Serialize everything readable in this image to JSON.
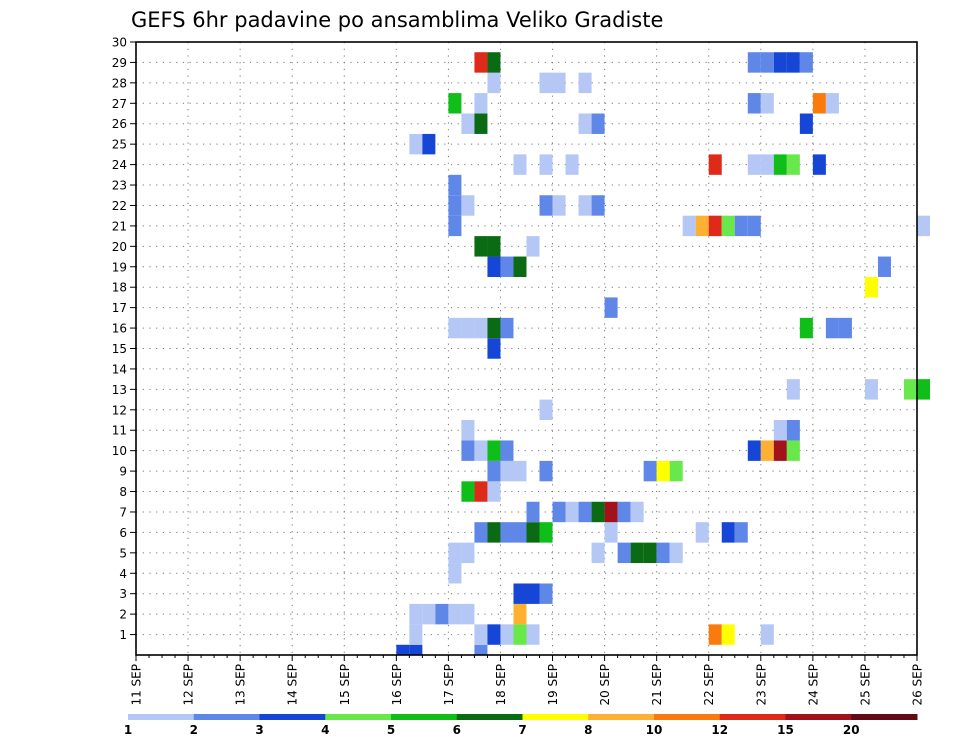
{
  "chart_data": {
    "type": "heatmap",
    "title": "GEFS 6hr padavine po ansamblima Veliko Gradiste",
    "xlabel": "",
    "ylabel": "",
    "x_ticks": [
      "11 SEP",
      "12 SEP",
      "13 SEP",
      "14 SEP",
      "15 SEP",
      "16 SEP",
      "17 SEP",
      "18 SEP",
      "19 SEP",
      "20 SEP",
      "21 SEP",
      "22 SEP",
      "23 SEP",
      "24 SEP",
      "25 SEP",
      "26 SEP"
    ],
    "x_unit_note": "x values are forecast time in days from 11 SEP 00Z; each cell spans 0.25 day (6 hours)",
    "xlim": [
      0,
      15
    ],
    "y_ticks": [
      1,
      2,
      3,
      4,
      5,
      6,
      7,
      8,
      9,
      10,
      11,
      12,
      13,
      14,
      15,
      16,
      17,
      18,
      19,
      20,
      21,
      22,
      23,
      24,
      25,
      26,
      27,
      28,
      29,
      30
    ],
    "ylim": [
      0,
      30
    ],
    "grid": true,
    "colorbar": {
      "labels": [
        "1",
        "2",
        "3",
        "4",
        "5",
        "6",
        "7",
        "8",
        "10",
        "12",
        "15",
        "20"
      ],
      "colors": [
        "#b4c7f5",
        "#5f87e8",
        "#1546d6",
        "#69e84c",
        "#10be1a",
        "#0b6a14",
        "#ffff00",
        "#fdb031",
        "#fa7a0e",
        "#df2a1a",
        "#a3111a",
        "#640a14"
      ]
    },
    "cells": [
      [
        5.0,
        0,
        "#1546d6"
      ],
      [
        5.25,
        0,
        "#1546d6"
      ],
      [
        6.5,
        0,
        "#5f87e8"
      ],
      [
        5.25,
        1,
        "#b4c7f5"
      ],
      [
        6.5,
        1,
        "#b4c7f5"
      ],
      [
        6.75,
        1,
        "#1546d6"
      ],
      [
        7.0,
        1,
        "#b4c7f5"
      ],
      [
        7.25,
        1,
        "#69e84c"
      ],
      [
        7.5,
        1,
        "#b4c7f5"
      ],
      [
        11.0,
        1,
        "#fa7a0e"
      ],
      [
        11.25,
        1,
        "#ffff00"
      ],
      [
        12.0,
        1,
        "#b4c7f5"
      ],
      [
        5.25,
        2,
        "#b4c7f5"
      ],
      [
        5.5,
        2,
        "#b4c7f5"
      ],
      [
        5.75,
        2,
        "#5f87e8"
      ],
      [
        6.0,
        2,
        "#b4c7f5"
      ],
      [
        6.25,
        2,
        "#b4c7f5"
      ],
      [
        7.25,
        2,
        "#fdb031"
      ],
      [
        7.25,
        3,
        "#1546d6"
      ],
      [
        7.5,
        3,
        "#1546d6"
      ],
      [
        7.75,
        3,
        "#5f87e8"
      ],
      [
        6.0,
        4,
        "#b4c7f5"
      ],
      [
        6.0,
        5,
        "#b4c7f5"
      ],
      [
        6.25,
        5,
        "#b4c7f5"
      ],
      [
        8.75,
        5,
        "#b4c7f5"
      ],
      [
        9.25,
        5,
        "#5f87e8"
      ],
      [
        9.5,
        5,
        "#0b6a14"
      ],
      [
        9.75,
        5,
        "#0b6a14"
      ],
      [
        10.0,
        5,
        "#5f87e8"
      ],
      [
        10.25,
        5,
        "#b4c7f5"
      ],
      [
        6.5,
        6,
        "#5f87e8"
      ],
      [
        6.75,
        6,
        "#0b6a14"
      ],
      [
        7.0,
        6,
        "#5f87e8"
      ],
      [
        7.25,
        6,
        "#5f87e8"
      ],
      [
        7.5,
        6,
        "#0b6a14"
      ],
      [
        7.75,
        6,
        "#10be1a"
      ],
      [
        9.0,
        6,
        "#b4c7f5"
      ],
      [
        10.75,
        6,
        "#b4c7f5"
      ],
      [
        11.25,
        6,
        "#1546d6"
      ],
      [
        11.5,
        6,
        "#5f87e8"
      ],
      [
        7.5,
        7,
        "#5f87e8"
      ],
      [
        8.0,
        7,
        "#5f87e8"
      ],
      [
        8.25,
        7,
        "#b4c7f5"
      ],
      [
        8.5,
        7,
        "#5f87e8"
      ],
      [
        8.75,
        7,
        "#0b6a14"
      ],
      [
        9.0,
        7,
        "#a3111a"
      ],
      [
        9.25,
        7,
        "#5f87e8"
      ],
      [
        9.5,
        7,
        "#b4c7f5"
      ],
      [
        6.25,
        8,
        "#10be1a"
      ],
      [
        6.5,
        8,
        "#df2a1a"
      ],
      [
        6.75,
        8,
        "#b4c7f5"
      ],
      [
        6.75,
        9,
        "#5f87e8"
      ],
      [
        7.0,
        9,
        "#b4c7f5"
      ],
      [
        7.25,
        9,
        "#b4c7f5"
      ],
      [
        7.75,
        9,
        "#5f87e8"
      ],
      [
        9.75,
        9,
        "#5f87e8"
      ],
      [
        10.0,
        9,
        "#ffff00"
      ],
      [
        10.25,
        9,
        "#69e84c"
      ],
      [
        6.25,
        10,
        "#5f87e8"
      ],
      [
        6.5,
        10,
        "#b4c7f5"
      ],
      [
        6.75,
        10,
        "#10be1a"
      ],
      [
        7.0,
        10,
        "#5f87e8"
      ],
      [
        11.75,
        10,
        "#1546d6"
      ],
      [
        12.0,
        10,
        "#fdb031"
      ],
      [
        12.25,
        10,
        "#a3111a"
      ],
      [
        12.5,
        10,
        "#69e84c"
      ],
      [
        6.25,
        11,
        "#b4c7f5"
      ],
      [
        12.25,
        11,
        "#b4c7f5"
      ],
      [
        12.5,
        11,
        "#5f87e8"
      ],
      [
        7.75,
        12,
        "#b4c7f5"
      ],
      [
        12.5,
        13,
        "#b4c7f5"
      ],
      [
        14.0,
        13,
        "#b4c7f5"
      ],
      [
        14.75,
        13,
        "#69e84c"
      ],
      [
        15.0,
        13,
        "#10be1a"
      ],
      [
        6.75,
        15,
        "#1546d6"
      ],
      [
        6.0,
        16,
        "#b4c7f5"
      ],
      [
        6.25,
        16,
        "#b4c7f5"
      ],
      [
        6.5,
        16,
        "#b4c7f5"
      ],
      [
        6.75,
        16,
        "#0b6a14"
      ],
      [
        7.0,
        16,
        "#5f87e8"
      ],
      [
        12.75,
        16,
        "#10be1a"
      ],
      [
        13.25,
        16,
        "#5f87e8"
      ],
      [
        13.5,
        16,
        "#5f87e8"
      ],
      [
        9.0,
        17,
        "#5f87e8"
      ],
      [
        14.0,
        18,
        "#ffff00"
      ],
      [
        6.75,
        19,
        "#1546d6"
      ],
      [
        7.0,
        19,
        "#5f87e8"
      ],
      [
        7.25,
        19,
        "#0b6a14"
      ],
      [
        14.25,
        19,
        "#5f87e8"
      ],
      [
        6.5,
        20,
        "#0b6a14"
      ],
      [
        6.75,
        20,
        "#0b6a14"
      ],
      [
        7.5,
        20,
        "#b4c7f5"
      ],
      [
        6.0,
        21,
        "#5f87e8"
      ],
      [
        10.5,
        21,
        "#b4c7f5"
      ],
      [
        10.75,
        21,
        "#fdb031"
      ],
      [
        11.0,
        21,
        "#df2a1a"
      ],
      [
        11.25,
        21,
        "#69e84c"
      ],
      [
        11.5,
        21,
        "#5f87e8"
      ],
      [
        11.75,
        21,
        "#5f87e8"
      ],
      [
        15.0,
        21,
        "#b4c7f5"
      ],
      [
        6.0,
        22,
        "#5f87e8"
      ],
      [
        6.25,
        22,
        "#b4c7f5"
      ],
      [
        7.75,
        22,
        "#5f87e8"
      ],
      [
        8.0,
        22,
        "#b4c7f5"
      ],
      [
        8.5,
        22,
        "#b4c7f5"
      ],
      [
        8.75,
        22,
        "#5f87e8"
      ],
      [
        6.0,
        23,
        "#5f87e8"
      ],
      [
        7.25,
        24,
        "#b4c7f5"
      ],
      [
        7.75,
        24,
        "#b4c7f5"
      ],
      [
        8.25,
        24,
        "#b4c7f5"
      ],
      [
        11.0,
        24,
        "#df2a1a"
      ],
      [
        11.75,
        24,
        "#b4c7f5"
      ],
      [
        12.0,
        24,
        "#b4c7f5"
      ],
      [
        12.25,
        24,
        "#10be1a"
      ],
      [
        12.5,
        24,
        "#69e84c"
      ],
      [
        13.0,
        24,
        "#1546d6"
      ],
      [
        5.25,
        25,
        "#b4c7f5"
      ],
      [
        5.5,
        25,
        "#1546d6"
      ],
      [
        6.25,
        26,
        "#b4c7f5"
      ],
      [
        6.5,
        26,
        "#0b6a14"
      ],
      [
        8.5,
        26,
        "#b4c7f5"
      ],
      [
        8.75,
        26,
        "#5f87e8"
      ],
      [
        12.75,
        26,
        "#1546d6"
      ],
      [
        6.0,
        27,
        "#10be1a"
      ],
      [
        6.5,
        27,
        "#b4c7f5"
      ],
      [
        11.75,
        27,
        "#5f87e8"
      ],
      [
        12.0,
        27,
        "#b4c7f5"
      ],
      [
        13.0,
        27,
        "#fa7a0e"
      ],
      [
        13.25,
        27,
        "#b4c7f5"
      ],
      [
        6.75,
        28,
        "#b4c7f5"
      ],
      [
        7.75,
        28,
        "#b4c7f5"
      ],
      [
        8.0,
        28,
        "#b4c7f5"
      ],
      [
        8.5,
        28,
        "#b4c7f5"
      ],
      [
        6.5,
        29,
        "#df2a1a"
      ],
      [
        6.75,
        29,
        "#0b6a14"
      ],
      [
        11.75,
        29,
        "#5f87e8"
      ],
      [
        12.0,
        29,
        "#5f87e8"
      ],
      [
        12.25,
        29,
        "#1546d6"
      ],
      [
        12.5,
        29,
        "#1546d6"
      ],
      [
        12.75,
        29,
        "#5f87e8"
      ]
    ]
  }
}
